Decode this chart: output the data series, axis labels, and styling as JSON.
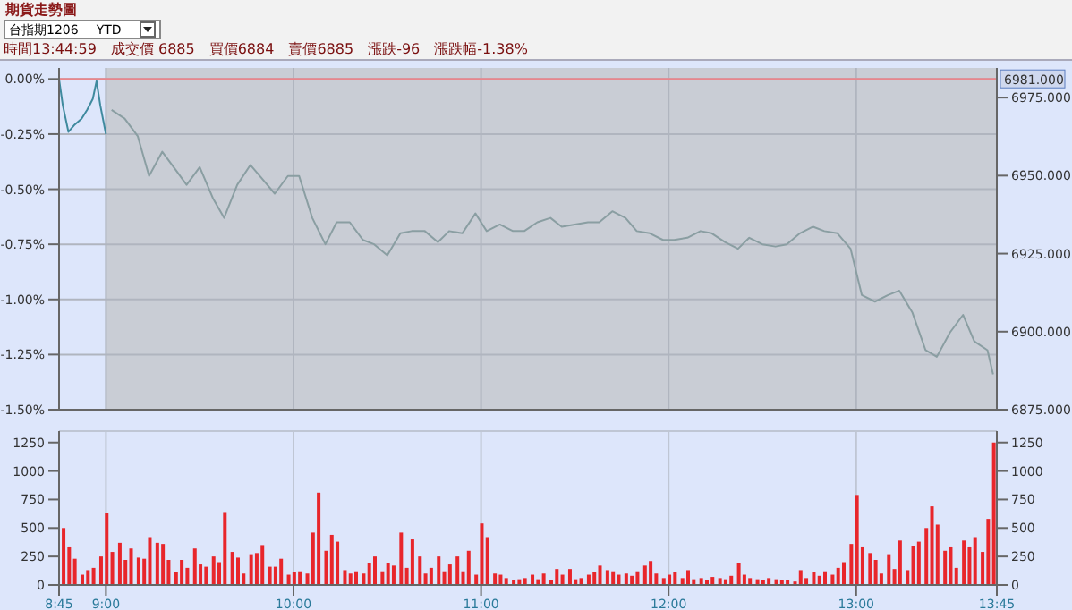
{
  "chart_data": [
    {
      "type": "line",
      "title": "期貨走勢圖",
      "subtitle": "台指期1206",
      "annotations": [
        "YTD",
        "時間13:44:59",
        "成交價 6885",
        "買價6884",
        "賣價6885",
        "漲跌-96",
        "漲跌幅-1.38%"
      ],
      "xlim": [
        8.75,
        13.75
      ],
      "xticks": [
        {
          "value": 8.75,
          "label": null
        },
        {
          "value": 9,
          "label": null
        },
        {
          "value": 10,
          "label": null
        },
        {
          "value": 11,
          "label": null
        },
        {
          "value": 12,
          "label": null
        },
        {
          "value": 13,
          "label": null
        },
        {
          "value": 13.75,
          "label": null
        }
      ],
      "ylim": [
        -1.5,
        0.05
      ],
      "yticks": [
        {
          "value": 0,
          "label": "0.00%"
        },
        {
          "value": -0.25,
          "label": "-0.25%"
        },
        {
          "value": -0.5,
          "label": "-0.50%"
        },
        {
          "value": -0.75,
          "label": "-0.75%"
        },
        {
          "value": -1,
          "label": "-1.00%"
        },
        {
          "value": -1.25,
          "label": "-1.25%"
        },
        {
          "value": -1.5,
          "label": "-1.50%"
        }
      ],
      "y2lim": [
        6875,
        6984.5
      ],
      "y2ticks": [
        {
          "value": 6875,
          "label": "6875.000"
        },
        {
          "value": 6900,
          "label": "6900.000"
        },
        {
          "value": 6925,
          "label": "6925.000"
        },
        {
          "value": 6950,
          "label": "6950.000"
        },
        {
          "value": 6975,
          "label": "6975.000"
        }
      ],
      "ref_lines": [
        {
          "axis": "y2",
          "value": 6981,
          "label": "6981.000",
          "color": "#e8868c"
        }
      ],
      "bands": [
        {
          "axis": "x",
          "from": 9,
          "to": 13.75,
          "color": "#c9cdd5"
        }
      ],
      "grid": true,
      "legend": false,
      "tick_labels": "y",
      "marker": "none",
      "line_style": "solid",
      "series": [
        {
          "color": "#3f8a9e",
          "x": [
            8.75,
            8.77,
            8.8,
            8.83,
            8.87,
            8.9,
            8.93,
            8.95,
            8.97,
            9.0
          ],
          "values": [
            0,
            -0.12,
            -0.24,
            -0.21,
            -0.18,
            -0.14,
            -0.09,
            -0.01,
            -0.12,
            -0.25
          ]
        },
        {
          "color": "#8a9ea2",
          "x": [
            9.03,
            9.1,
            9.17,
            9.23,
            9.3,
            9.37,
            9.43,
            9.5,
            9.57,
            9.63,
            9.7,
            9.77,
            9.83,
            9.9,
            9.97,
            10.03,
            10.1,
            10.17,
            10.23,
            10.3,
            10.37,
            10.43,
            10.5,
            10.57,
            10.63,
            10.7,
            10.77,
            10.83,
            10.9,
            10.97,
            11.03,
            11.1,
            11.17,
            11.23,
            11.3,
            11.37,
            11.43,
            11.5,
            11.57,
            11.63,
            11.7,
            11.77,
            11.83,
            11.9,
            11.97,
            12.03,
            12.1,
            12.17,
            12.23,
            12.3,
            12.37,
            12.43,
            12.5,
            12.57,
            12.63,
            12.7,
            12.77,
            12.83,
            12.9,
            12.97,
            13.03,
            13.1,
            13.17,
            13.23,
            13.3,
            13.37,
            13.43,
            13.5,
            13.57,
            13.63,
            13.7,
            13.73
          ],
          "values": [
            -0.14,
            -0.18,
            -0.26,
            -0.44,
            -0.33,
            -0.41,
            -0.48,
            -0.4,
            -0.54,
            -0.63,
            -0.48,
            -0.39,
            -0.45,
            -0.52,
            -0.44,
            -0.44,
            -0.63,
            -0.75,
            -0.65,
            -0.65,
            -0.73,
            -0.75,
            -0.8,
            -0.7,
            -0.69,
            -0.69,
            -0.74,
            -0.69,
            -0.7,
            -0.61,
            -0.69,
            -0.66,
            -0.69,
            -0.69,
            -0.65,
            -0.63,
            -0.67,
            -0.66,
            -0.65,
            -0.65,
            -0.6,
            -0.63,
            -0.69,
            -0.7,
            -0.73,
            -0.73,
            -0.72,
            -0.69,
            -0.7,
            -0.74,
            -0.77,
            -0.72,
            -0.75,
            -0.76,
            -0.75,
            -0.7,
            -0.67,
            -0.69,
            -0.7,
            -0.77,
            -0.98,
            -1.01,
            -0.98,
            -0.96,
            -1.06,
            -1.23,
            -1.26,
            -1.15,
            -1.07,
            -1.19,
            -1.23,
            -1.34
          ]
        }
      ]
    },
    {
      "type": "bar",
      "xlim": [
        8.75,
        13.75
      ],
      "xticks": [
        {
          "value": 8.75,
          "label": "8:45"
        },
        {
          "value": 9,
          "label": "9:00"
        },
        {
          "value": 10,
          "label": "10:00"
        },
        {
          "value": 11,
          "label": "11:00"
        },
        {
          "value": 12,
          "label": "12:00"
        },
        {
          "value": 13,
          "label": "13:00"
        },
        {
          "value": 13.75,
          "label": "13:45"
        }
      ],
      "ylim": [
        0,
        1350
      ],
      "yticks": [
        0,
        250,
        500,
        750,
        1000,
        1250
      ],
      "y2lim": [
        0,
        1350
      ],
      "y2ticks": [
        0,
        250,
        500,
        750,
        1000,
        1250
      ],
      "grid": true,
      "legend": false,
      "x": [
        8.77,
        8.8,
        8.83,
        8.87,
        8.9,
        8.93,
        8.97,
        9.0,
        9.03,
        9.07,
        9.1,
        9.13,
        9.17,
        9.2,
        9.23,
        9.27,
        9.3,
        9.33,
        9.37,
        9.4,
        9.43,
        9.47,
        9.5,
        9.53,
        9.57,
        9.6,
        9.63,
        9.67,
        9.7,
        9.73,
        9.77,
        9.8,
        9.83,
        9.87,
        9.9,
        9.93,
        9.97,
        10.0,
        10.03,
        10.07,
        10.1,
        10.13,
        10.17,
        10.2,
        10.23,
        10.27,
        10.3,
        10.33,
        10.37,
        10.4,
        10.43,
        10.47,
        10.5,
        10.53,
        10.57,
        10.6,
        10.63,
        10.67,
        10.7,
        10.73,
        10.77,
        10.8,
        10.83,
        10.87,
        10.9,
        10.93,
        10.97,
        11.0,
        11.03,
        11.07,
        11.1,
        11.13,
        11.17,
        11.2,
        11.23,
        11.27,
        11.3,
        11.33,
        11.37,
        11.4,
        11.43,
        11.47,
        11.5,
        11.53,
        11.57,
        11.6,
        11.63,
        11.67,
        11.7,
        11.73,
        11.77,
        11.8,
        11.83,
        11.87,
        11.9,
        11.93,
        11.97,
        12.0,
        12.03,
        12.07,
        12.1,
        12.13,
        12.17,
        12.2,
        12.23,
        12.27,
        12.3,
        12.33,
        12.37,
        12.4,
        12.43,
        12.47,
        12.5,
        12.53,
        12.57,
        12.6,
        12.63,
        12.67,
        12.7,
        12.73,
        12.77,
        12.8,
        12.83,
        12.87,
        12.9,
        12.93,
        12.97,
        13.0,
        13.03,
        13.07,
        13.1,
        13.13,
        13.17,
        13.2,
        13.23,
        13.27,
        13.3,
        13.33,
        13.37,
        13.4,
        13.43,
        13.47,
        13.5,
        13.53,
        13.57,
        13.6,
        13.63,
        13.67,
        13.7,
        13.73
      ],
      "series": [
        {
          "color": "#e8262b",
          "values": [
            500,
            330,
            230,
            90,
            130,
            150,
            250,
            630,
            290,
            370,
            220,
            320,
            240,
            230,
            420,
            370,
            360,
            220,
            110,
            220,
            150,
            320,
            180,
            160,
            250,
            200,
            640,
            290,
            240,
            100,
            270,
            280,
            350,
            160,
            160,
            230,
            90,
            110,
            120,
            100,
            460,
            810,
            300,
            440,
            380,
            130,
            100,
            120,
            100,
            190,
            250,
            120,
            190,
            170,
            460,
            150,
            400,
            250,
            100,
            150,
            250,
            120,
            180,
            250,
            120,
            300,
            90,
            540,
            420,
            100,
            90,
            60,
            40,
            50,
            60,
            90,
            50,
            100,
            40,
            140,
            90,
            140,
            50,
            60,
            90,
            110,
            170,
            130,
            120,
            90,
            100,
            80,
            120,
            170,
            210,
            100,
            60,
            90,
            110,
            60,
            130,
            50,
            60,
            40,
            70,
            60,
            50,
            80,
            190,
            90,
            60,
            50,
            40,
            60,
            50,
            40,
            40,
            30,
            130,
            60,
            110,
            80,
            120,
            90,
            150,
            200,
            360,
            790,
            330,
            280,
            220,
            100,
            270,
            140,
            390,
            130,
            340,
            380,
            500,
            690,
            530,
            300,
            330,
            150,
            390,
            330,
            420,
            290,
            580,
            1250
          ]
        }
      ]
    }
  ]
}
